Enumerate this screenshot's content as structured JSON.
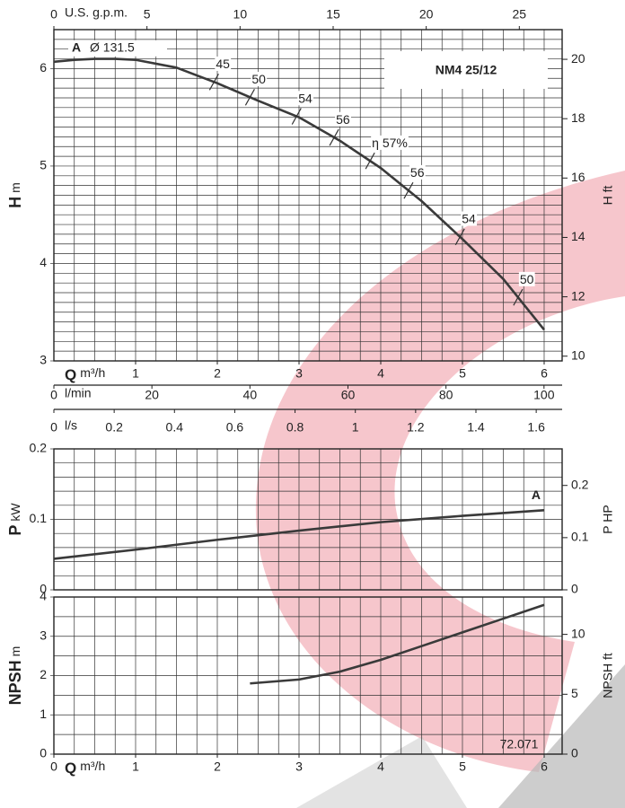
{
  "chart_data": [
    {
      "type": "line",
      "title": "NM4 25/12",
      "ylabel": "H",
      "yunit": "m",
      "y2label": "H ft",
      "xlabel": "Q",
      "xunit": "m³/h",
      "x": [
        0,
        0.25,
        0.5,
        0.75,
        1,
        1.5,
        2,
        2.5,
        3,
        3.5,
        4,
        4.5,
        5,
        5.5,
        6
      ],
      "series": [
        {
          "name": "A",
          "color": "#3a3a3a",
          "values": [
            6.07,
            6.09,
            6.1,
            6.1,
            6.09,
            6.01,
            5.85,
            5.67,
            5.5,
            5.26,
            4.98,
            4.64,
            4.25,
            3.84,
            3.32
          ]
        }
      ],
      "annotation": "Ø 131.5",
      "efficiency": {
        "x": [
          1.96,
          2.4,
          2.97,
          3.43,
          3.87,
          4.34,
          4.97,
          5.68
        ],
        "values": [
          45,
          50,
          54,
          56,
          57,
          56,
          54,
          50
        ],
        "value_labels": [
          "45",
          "50",
          "54",
          "56",
          "η 57%",
          "56",
          "54",
          "50"
        ]
      },
      "xlim": [
        0,
        6.22
      ],
      "xticks": [
        1,
        2,
        3,
        4,
        5,
        6
      ],
      "ylim": [
        3,
        6.4
      ],
      "yticks": [
        3,
        4,
        5,
        6
      ],
      "y2lim": [
        9.84,
        21.0
      ],
      "y2ticks": [
        10,
        12,
        14,
        16,
        18,
        20
      ],
      "minor_step": [
        0.25,
        0.1
      ],
      "grid": true,
      "x_axes": [
        {
          "label": "U.S. g.p.m.",
          "lim": [
            0,
            27.3
          ],
          "ticks": [
            0,
            5,
            10,
            15,
            20,
            25
          ],
          "position": "top"
        },
        {
          "label": "l/min",
          "lim": [
            0,
            103.7
          ],
          "ticks": [
            0,
            20,
            40,
            60,
            80,
            100
          ],
          "position": "bottom"
        },
        {
          "label": "l/s",
          "lim": [
            0,
            1.686
          ],
          "ticks": [
            0,
            0.2,
            0.4,
            0.6,
            0.8,
            1,
            1.2,
            1.4,
            1.6
          ],
          "position": "bottom"
        }
      ]
    },
    {
      "type": "line",
      "ylabel": "P",
      "yunit": "kW",
      "y2label": "P HP",
      "x": [
        0,
        1,
        2,
        3,
        4,
        5,
        6
      ],
      "series": [
        {
          "name": "A",
          "color": "#3a3a3a",
          "values": [
            0.044,
            0.057,
            0.071,
            0.084,
            0.096,
            0.105,
            0.113
          ]
        }
      ],
      "xlim": [
        0,
        6.22
      ],
      "ylim": [
        0,
        0.2
      ],
      "yticks": [
        0,
        0.1,
        0.2
      ],
      "y2lim": [
        0,
        0.27
      ],
      "y2ticks": [
        0,
        0.1,
        0.2
      ],
      "minor_step": [
        0.25,
        0.02
      ],
      "grid": true
    },
    {
      "type": "line",
      "ylabel": "NPSH",
      "yunit": "m",
      "y2label": "NPSH ft",
      "xlabel": "Q",
      "xunit": "m³/h",
      "code": "72.071",
      "x": [
        2.4,
        3,
        3.5,
        4,
        4.5,
        5,
        5.5,
        6
      ],
      "series": [
        {
          "color": "#3a3a3a",
          "values": [
            1.8,
            1.9,
            2.1,
            2.4,
            2.75,
            3.1,
            3.45,
            3.8
          ]
        }
      ],
      "xlim": [
        0,
        6.22
      ],
      "xticks": [
        0,
        1,
        2,
        3,
        4,
        5,
        6
      ],
      "ylim": [
        0,
        4
      ],
      "yticks": [
        0,
        1,
        2,
        3,
        4
      ],
      "y2lim": [
        0,
        13.12
      ],
      "y2ticks": [
        0,
        5,
        10
      ],
      "minor_step": [
        0.25,
        0.5
      ],
      "grid": true
    }
  ]
}
